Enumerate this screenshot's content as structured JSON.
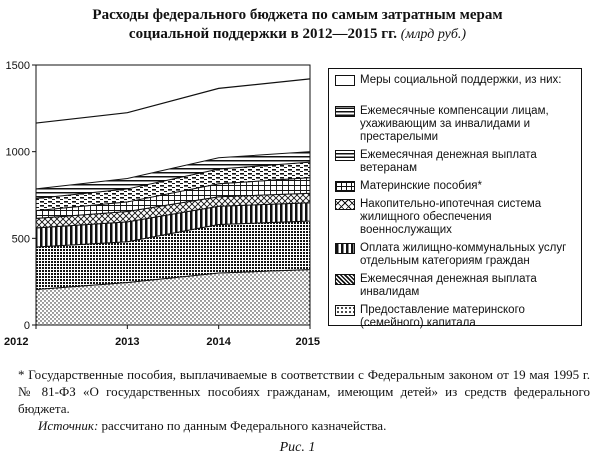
{
  "title_line1": "Расходы федерального бюджета по самым затратным мерам",
  "title_line2": "социальной поддержки в 2012—2015 гг.",
  "title_unit": "(млрд руб.)",
  "footnote": "* Государственные пособия, выплачиваемые в соответствии с Федеральным законом от 19 мая 1995 г. № 81-ФЗ «О государственных пособиях гражданам, имеющим детей» из средств федерального бюджета.",
  "source_label": "Источник:",
  "source_text": " рассчитано по данным Федерального казначейства.",
  "caption": "Рис. 1",
  "chart_data": {
    "type": "area",
    "x": [
      "2012",
      "2013",
      "2014",
      "2015"
    ],
    "ylim": [
      0,
      1500
    ],
    "yticks": [
      "0",
      "500",
      "1000",
      "1500"
    ],
    "total": {
      "name": "Меры социальной поддержки, из них:",
      "values": [
        1165,
        1225,
        1365,
        1420
      ]
    },
    "series": [
      {
        "name": "Предоставление материнского (семейного) капитала",
        "values": [
          205,
          245,
          300,
          320
        ],
        "pattern": "dots"
      },
      {
        "name": "Ежемесячная денежная выплата инвалидам",
        "values": [
          245,
          235,
          280,
          280
        ],
        "pattern": "dense"
      },
      {
        "name": "Оплата жилищно-коммунальных услуг отдельным категориям граждан",
        "values": [
          110,
          115,
          105,
          105
        ],
        "pattern": "vlines"
      },
      {
        "name": "Накопительно-ипотечная система жилищного обеспечения военнослужащих",
        "values": [
          55,
          60,
          55,
          55
        ],
        "pattern": "crosshatch"
      },
      {
        "name": "Материнские пособия*",
        "values": [
          45,
          55,
          75,
          90
        ],
        "pattern": "grid"
      },
      {
        "name": "Ежемесячная денежная выплата ветеранам",
        "values": [
          70,
          75,
          85,
          90
        ],
        "pattern": "dashes"
      },
      {
        "name": "Ежемесячные компенсации лицам, ухаживающим за инвалидами и престарелыми",
        "values": [
          55,
          60,
          65,
          60
        ],
        "pattern": "hlines"
      }
    ],
    "legend_position": "right"
  }
}
